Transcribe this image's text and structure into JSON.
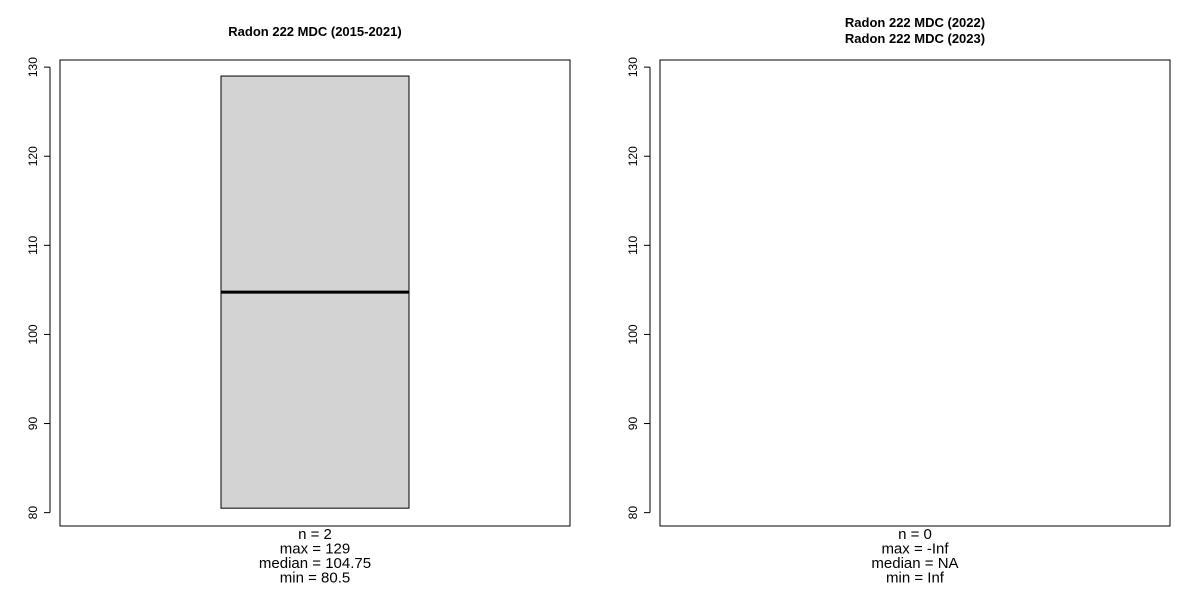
{
  "chart_data": [
    {
      "type": "boxplot",
      "title_lines": [
        "Radon 222 MDC (2015-2021)"
      ],
      "ylim": [
        78.5,
        130.8
      ],
      "yticks": [
        80,
        90,
        100,
        110,
        120,
        130
      ],
      "box": {
        "min": 80.5,
        "median": 104.75,
        "max": 129,
        "lower": 80.5,
        "upper": 129
      },
      "stats_lines": [
        "n = 2",
        "max = 129",
        "median = 104.75",
        "min = 80.5"
      ],
      "box_fill": "#d3d3d3",
      "grid": false
    },
    {
      "type": "boxplot",
      "title_lines": [
        "Radon 222 MDC (2022)",
        "Radon 222 MDC (2023)"
      ],
      "ylim": [
        78.5,
        130.8
      ],
      "yticks": [
        80,
        90,
        100,
        110,
        120,
        130
      ],
      "box": null,
      "stats_lines": [
        "n = 0",
        "max = -Inf",
        "median = NA",
        "min = Inf"
      ],
      "grid": false
    }
  ]
}
